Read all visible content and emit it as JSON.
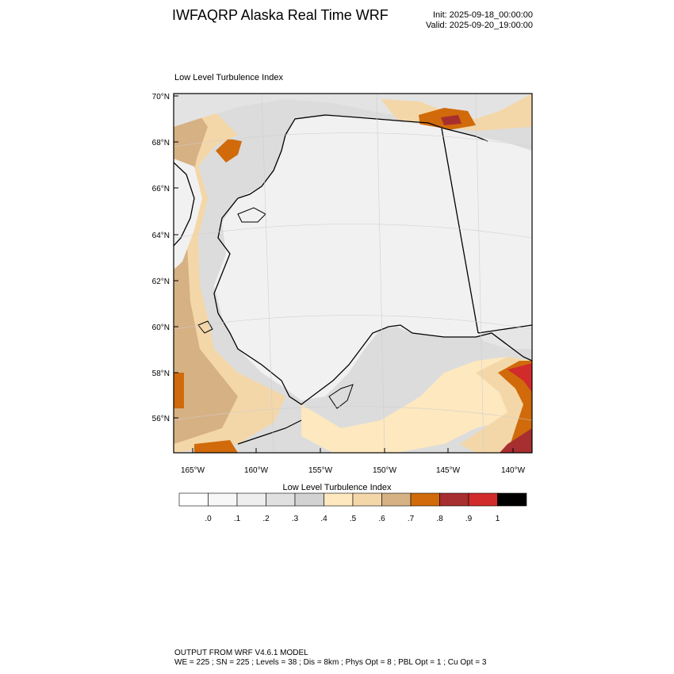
{
  "header": {
    "title": "IWFAQRP Alaska Real Time WRF",
    "init": "Init: 2025-09-18_00:00:00",
    "valid": "Valid: 2025-09-20_19:00:00"
  },
  "map": {
    "title": "Low Level Turbulence Index",
    "lat_labels": [
      "70°N",
      "68°N",
      "66°N",
      "64°N",
      "62°N",
      "60°N",
      "58°N",
      "56°N"
    ],
    "lon_labels": [
      "165°W",
      "160°W",
      "155°W",
      "150°W",
      "145°W",
      "140°W"
    ],
    "land_color": "#f1f1f1",
    "coast_color": "#000000"
  },
  "colorbar": {
    "title": "Low Level Turbulence Index",
    "labels": [
      ".0",
      ".1",
      ".2",
      ".3",
      ".4",
      ".5",
      ".6",
      ".7",
      ".8",
      ".9",
      "1"
    ],
    "colors": [
      "#ffffff",
      "#f7f7f7",
      "#eeeeee",
      "#e0e0e0",
      "#d2d2d2",
      "#fde8bf",
      "#f4d7a8",
      "#d6b184",
      "#d06a0a",
      "#a82f2f",
      "#d12b2b",
      "#000000"
    ]
  },
  "footer": {
    "line1": "OUTPUT FROM WRF V4.6.1 MODEL",
    "line2": "WE = 225 ; SN = 225 ; Levels = 38 ; Dis = 8km ; Phys Opt = 8 ; PBL Opt = 1 ; Cu Opt = 3"
  }
}
